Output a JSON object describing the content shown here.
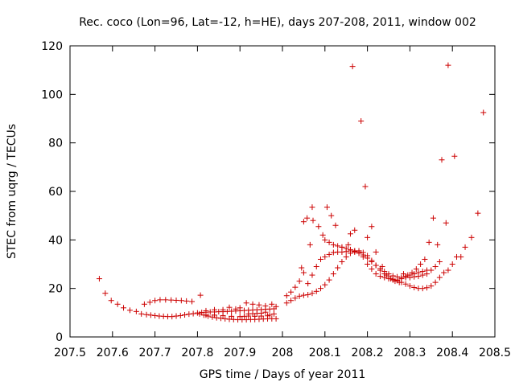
{
  "chart_data": {
    "type": "scatter",
    "title": "Rec. coco (Lon=96, Lat=-12, h=HE), days 207-208, 2011, window 002",
    "xlabel": "GPS time / Days of year 2011",
    "ylabel": "STEC from uqrg / TECUs",
    "xlim": [
      207.5,
      208.5
    ],
    "ylim": [
      0,
      120
    ],
    "x_ticks": [
      207.5,
      207.6,
      207.7,
      207.8,
      207.9,
      208,
      208.1,
      208.2,
      208.3,
      208.4,
      208.5
    ],
    "x_tick_labels": [
      "207.5",
      "207.6",
      "207.7",
      "207.8",
      "207.9",
      "208",
      "208.1",
      "208.2",
      "208.3",
      "208.4",
      "208.5"
    ],
    "y_ticks": [
      0,
      20,
      40,
      60,
      80,
      100,
      120
    ],
    "y_tick_labels": [
      "0",
      "20",
      "40",
      "60",
      "80",
      "100",
      "120"
    ],
    "grid": false,
    "marker": "+",
    "color": "#cc0000",
    "series": [
      {
        "name": "STEC",
        "points": [
          [
            207.569,
            24
          ],
          [
            207.583,
            18
          ],
          [
            207.597,
            15
          ],
          [
            207.612,
            13.5
          ],
          [
            207.626,
            12
          ],
          [
            207.641,
            11
          ],
          [
            207.656,
            10.5
          ],
          [
            207.668,
            9.5
          ],
          [
            207.68,
            9.2
          ],
          [
            207.69,
            9
          ],
          [
            207.7,
            8.8
          ],
          [
            207.71,
            8.6
          ],
          [
            207.72,
            8.5
          ],
          [
            207.73,
            8.4
          ],
          [
            207.74,
            8.4
          ],
          [
            207.75,
            8.6
          ],
          [
            207.76,
            8.8
          ],
          [
            207.77,
            9.1
          ],
          [
            207.78,
            9.4
          ],
          [
            207.79,
            9.6
          ],
          [
            207.8,
            9.9
          ],
          [
            207.81,
            10.1
          ],
          [
            207.82,
            10.2
          ],
          [
            207.83,
            10.3
          ],
          [
            207.84,
            10.3
          ],
          [
            207.85,
            10.4
          ],
          [
            207.86,
            10.4
          ],
          [
            207.87,
            10.5
          ],
          [
            207.88,
            10.6
          ],
          [
            207.89,
            10.7
          ],
          [
            207.9,
            10.8
          ],
          [
            207.91,
            10.9
          ],
          [
            207.92,
            11
          ],
          [
            207.93,
            11.1
          ],
          [
            207.94,
            11.2
          ],
          [
            207.95,
            11.3
          ],
          [
            207.96,
            11.4
          ],
          [
            207.97,
            11.5
          ],
          [
            207.98,
            11.6
          ],
          [
            207.675,
            13.5
          ],
          [
            207.688,
            14.3
          ],
          [
            207.7,
            15
          ],
          [
            207.712,
            15.3
          ],
          [
            207.725,
            15.3
          ],
          [
            207.738,
            15.2
          ],
          [
            207.75,
            15.1
          ],
          [
            207.762,
            15
          ],
          [
            207.774,
            14.8
          ],
          [
            207.787,
            14.6
          ],
          [
            207.807,
            17.2
          ],
          [
            207.805,
            9.5
          ],
          [
            207.815,
            9
          ],
          [
            207.825,
            8.6
          ],
          [
            207.835,
            8.2
          ],
          [
            207.845,
            7.9
          ],
          [
            207.855,
            7.7
          ],
          [
            207.865,
            7.5
          ],
          [
            207.875,
            7.3
          ],
          [
            207.885,
            7.2
          ],
          [
            207.895,
            7.1
          ],
          [
            207.905,
            7.1
          ],
          [
            207.915,
            7.1
          ],
          [
            207.925,
            7.2
          ],
          [
            207.935,
            7.2
          ],
          [
            207.945,
            7.3
          ],
          [
            207.955,
            7.4
          ],
          [
            207.965,
            7.5
          ],
          [
            207.975,
            7.5
          ],
          [
            207.985,
            7.5
          ],
          [
            207.82,
            10.8
          ],
          [
            207.84,
            11.2
          ],
          [
            207.86,
            11.2
          ],
          [
            207.875,
            12.2
          ],
          [
            207.89,
            11.5
          ],
          [
            207.9,
            12
          ],
          [
            207.915,
            14
          ],
          [
            207.93,
            13.5
          ],
          [
            207.945,
            13.2
          ],
          [
            207.96,
            12.8
          ],
          [
            207.975,
            13.5
          ],
          [
            207.985,
            12.5
          ],
          [
            207.92,
            9.5
          ],
          [
            207.93,
            9.6
          ],
          [
            207.94,
            9.7
          ],
          [
            207.95,
            9.8
          ],
          [
            207.96,
            10.2
          ],
          [
            207.97,
            9
          ],
          [
            207.98,
            9.5
          ],
          [
            207.82,
            9
          ],
          [
            207.84,
            9
          ],
          [
            207.86,
            8.8
          ],
          [
            207.88,
            8.5
          ],
          [
            207.9,
            8.4
          ],
          [
            207.91,
            8.5
          ],
          [
            207.92,
            8.6
          ],
          [
            207.935,
            8.5
          ],
          [
            207.95,
            8.6
          ],
          [
            207.965,
            8.7
          ],
          [
            208.01,
            14
          ],
          [
            208.02,
            15
          ],
          [
            208.03,
            16
          ],
          [
            208.04,
            16.8
          ],
          [
            208.05,
            17.2
          ],
          [
            208.06,
            17.4
          ],
          [
            208.07,
            18
          ],
          [
            208.08,
            18.8
          ],
          [
            208.09,
            20
          ],
          [
            208.1,
            21.5
          ],
          [
            208.11,
            23.5
          ],
          [
            208.12,
            26
          ],
          [
            208.13,
            28.5
          ],
          [
            208.14,
            31
          ],
          [
            208.15,
            33
          ],
          [
            208.16,
            34.5
          ],
          [
            208.17,
            35.3
          ],
          [
            208.18,
            35.5
          ],
          [
            208.19,
            34.8
          ],
          [
            208.2,
            33.5
          ],
          [
            208.21,
            31.5
          ],
          [
            208.22,
            29.5
          ],
          [
            208.23,
            27.5
          ],
          [
            208.24,
            26
          ],
          [
            208.25,
            24.8
          ],
          [
            208.26,
            23.8
          ],
          [
            208.27,
            23.2
          ],
          [
            208.28,
            22.5
          ],
          [
            208.29,
            21.8
          ],
          [
            208.3,
            21
          ],
          [
            208.31,
            20.4
          ],
          [
            208.32,
            20
          ],
          [
            208.33,
            20
          ],
          [
            208.34,
            20.3
          ],
          [
            208.35,
            21
          ],
          [
            208.36,
            22.5
          ],
          [
            208.37,
            24.5
          ],
          [
            208.38,
            26.5
          ],
          [
            208.39,
            27.5
          ],
          [
            208.4,
            30
          ],
          [
            208.41,
            33
          ],
          [
            208.42,
            33
          ],
          [
            208.43,
            37
          ],
          [
            208.445,
            41
          ],
          [
            208.46,
            51
          ],
          [
            208.473,
            92.5
          ],
          [
            208.01,
            17
          ],
          [
            208.02,
            18.5
          ],
          [
            208.03,
            20.5
          ],
          [
            208.04,
            23
          ],
          [
            208.05,
            26.5
          ],
          [
            208.06,
            22
          ],
          [
            208.07,
            25.5
          ],
          [
            208.08,
            29
          ],
          [
            208.09,
            32
          ],
          [
            208.1,
            33
          ],
          [
            208.11,
            34
          ],
          [
            208.12,
            34.8
          ],
          [
            208.13,
            35
          ],
          [
            208.14,
            35
          ],
          [
            208.15,
            35.2
          ],
          [
            208.16,
            35.5
          ],
          [
            208.17,
            35
          ],
          [
            208.18,
            34.5
          ],
          [
            208.19,
            33.8
          ],
          [
            208.2,
            32.5
          ],
          [
            208.21,
            31
          ],
          [
            208.22,
            29.5
          ],
          [
            208.23,
            28.2
          ],
          [
            208.24,
            27
          ],
          [
            208.25,
            26
          ],
          [
            208.26,
            25.2
          ],
          [
            208.27,
            24.8
          ],
          [
            208.28,
            24.5
          ],
          [
            208.29,
            24.5
          ],
          [
            208.3,
            24.5
          ],
          [
            208.31,
            24.8
          ],
          [
            208.32,
            25
          ],
          [
            208.33,
            25.5
          ],
          [
            208.34,
            26
          ],
          [
            208.35,
            27.5
          ],
          [
            208.36,
            29
          ],
          [
            208.37,
            31
          ],
          [
            208.045,
            28.5
          ],
          [
            208.05,
            47.5
          ],
          [
            208.058,
            49
          ],
          [
            208.065,
            38
          ],
          [
            208.072,
            48
          ],
          [
            208.07,
            53.5
          ],
          [
            208.085,
            45.5
          ],
          [
            208.095,
            42
          ],
          [
            208.105,
            53.5
          ],
          [
            208.115,
            50
          ],
          [
            208.125,
            46
          ],
          [
            208.14,
            37
          ],
          [
            208.155,
            38
          ],
          [
            208.16,
            42.5
          ],
          [
            208.17,
            44
          ],
          [
            208.165,
            111.5
          ],
          [
            208.185,
            89
          ],
          [
            208.195,
            62
          ],
          [
            208.2,
            41
          ],
          [
            208.21,
            45.5
          ],
          [
            208.22,
            35
          ],
          [
            208.235,
            29
          ],
          [
            208.245,
            25.5
          ],
          [
            208.255,
            24
          ],
          [
            208.265,
            23
          ],
          [
            208.275,
            22.5
          ],
          [
            208.285,
            26
          ],
          [
            208.295,
            25.5
          ],
          [
            208.305,
            26.5
          ],
          [
            208.315,
            28
          ],
          [
            208.325,
            30
          ],
          [
            208.335,
            32
          ],
          [
            208.345,
            39
          ],
          [
            208.355,
            49
          ],
          [
            208.365,
            38
          ],
          [
            208.375,
            73
          ],
          [
            208.385,
            47
          ],
          [
            208.39,
            112
          ],
          [
            208.405,
            74.5
          ],
          [
            208.1,
            40
          ],
          [
            208.11,
            39
          ],
          [
            208.12,
            38
          ],
          [
            208.13,
            37.5
          ],
          [
            208.14,
            37
          ],
          [
            208.15,
            36.5
          ],
          [
            208.16,
            36
          ],
          [
            208.17,
            35.5
          ],
          [
            208.18,
            35
          ],
          [
            208.19,
            33
          ],
          [
            208.2,
            30
          ],
          [
            208.21,
            28
          ],
          [
            208.22,
            26
          ],
          [
            208.23,
            25
          ],
          [
            208.24,
            24.5
          ],
          [
            208.25,
            24
          ],
          [
            208.26,
            23.5
          ],
          [
            208.27,
            23.5
          ],
          [
            208.28,
            24
          ],
          [
            208.29,
            25
          ],
          [
            208.3,
            25.5
          ],
          [
            208.31,
            26
          ],
          [
            208.32,
            26.5
          ],
          [
            208.33,
            27
          ],
          [
            208.34,
            27.5
          ]
        ]
      }
    ]
  }
}
